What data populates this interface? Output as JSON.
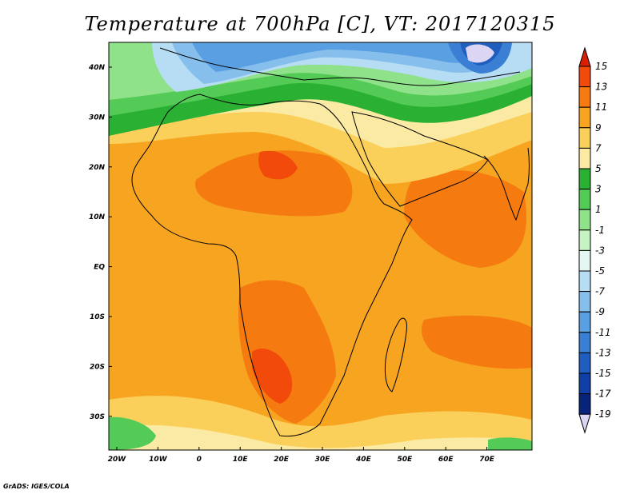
{
  "title": "Temperature at 700hPa [C], VT: 2017120315",
  "credit": "GrADS: IGES/COLA",
  "map": {
    "lat_labels": [
      "40N",
      "30N",
      "20N",
      "10N",
      "EQ",
      "10S",
      "20S",
      "30S"
    ],
    "lon_labels": [
      "20W",
      "10W",
      "0",
      "10E",
      "20E",
      "30E",
      "40E",
      "50E",
      "60E",
      "70E"
    ],
    "lat_range": [
      -36,
      45
    ],
    "lon_range": [
      -23,
      80
    ]
  },
  "colorbar": {
    "labels": [
      "15",
      "13",
      "11",
      "9",
      "7",
      "5",
      "3",
      "1",
      "-1",
      "-3",
      "-5",
      "-7",
      "-9",
      "-11",
      "-13",
      "-15",
      "-17",
      "-19"
    ],
    "colors": [
      "#d81e05",
      "#f24a0b",
      "#f57a10",
      "#f7a521",
      "#facf5a",
      "#fbeaa3",
      "#2ab134",
      "#54cb57",
      "#8fe18a",
      "#c6f3c2",
      "#e5f7f3",
      "#b6ddf3",
      "#86bfec",
      "#5a9fe2",
      "#3a7fd3",
      "#1f5ebf",
      "#0f3fa6",
      "#08237a",
      "#dcd5f3"
    ],
    "units": "C"
  }
}
